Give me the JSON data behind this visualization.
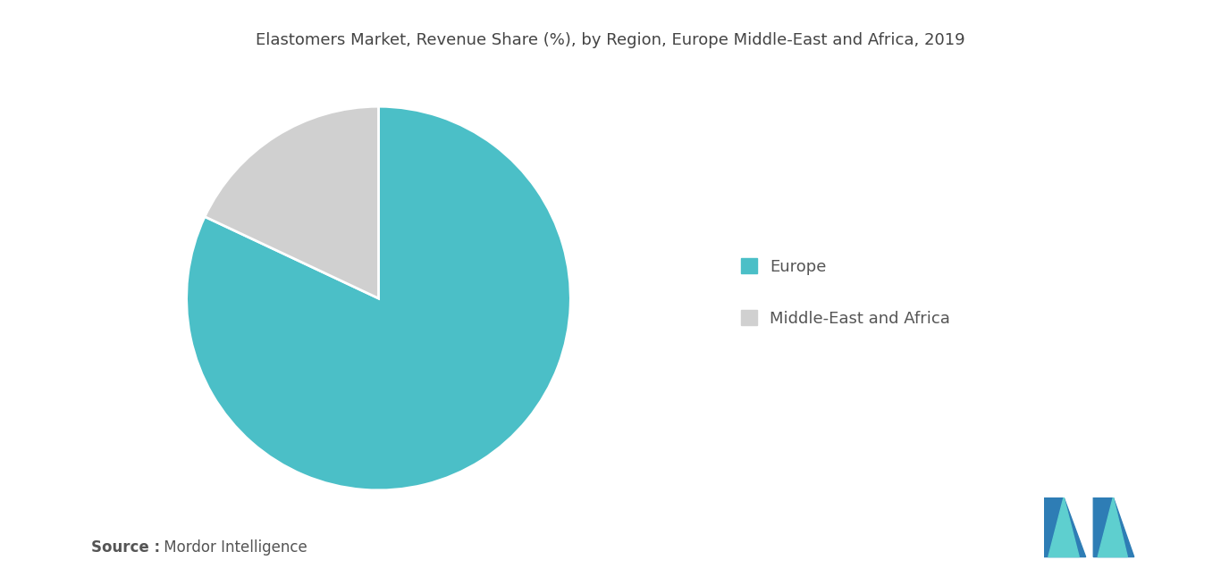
{
  "title": "Elastomers Market, Revenue Share (%), by Region, Europe Middle-East and Africa, 2019",
  "slices": [
    {
      "label": "Europe",
      "value": 82,
      "color": "#4bbfc7"
    },
    {
      "label": "Middle-East and Africa",
      "value": 18,
      "color": "#d0d0d0"
    }
  ],
  "legend_labels": [
    "Europe",
    "Middle-East and Africa"
  ],
  "legend_colors": [
    "#4bbfc7",
    "#d0d0d0"
  ],
  "source_bold": "Source :",
  "source_regular": " Mordor Intelligence",
  "background_color": "#ffffff",
  "title_fontsize": 13,
  "legend_fontsize": 13,
  "source_fontsize": 12,
  "start_angle": 90
}
